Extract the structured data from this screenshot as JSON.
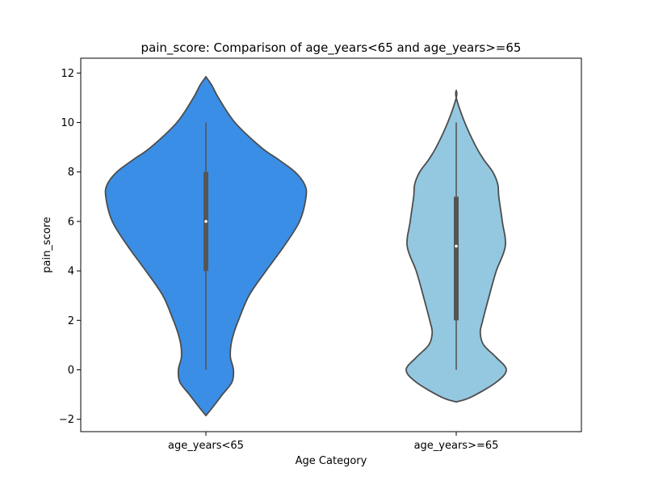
{
  "chart_data": {
    "type": "violin",
    "title": "pain_score: Comparison of age_years<65 and age_years>=65",
    "xlabel": "Age Category",
    "ylabel": "pain_score",
    "ylim": [
      -2.5,
      12.6
    ],
    "yticks": [
      -2,
      0,
      2,
      4,
      6,
      8,
      10,
      12
    ],
    "ytick_labels": [
      "−2",
      "0",
      "2",
      "4",
      "6",
      "8",
      "10",
      "12"
    ],
    "categories": [
      "age_years<65",
      "age_years>=65"
    ],
    "grid": false,
    "colors": {
      "violin_1": "#3a8ee6",
      "violin_2": "#93c8e0",
      "outline": "#4d4d4d",
      "box": "#555555",
      "median": "#ffffff"
    },
    "violins": [
      {
        "category": "age_years<65",
        "min": 0,
        "q1": 4,
        "median": 6,
        "q3": 8,
        "max": 10,
        "kde_range": [
          -1.85,
          11.85
        ],
        "density_profile": [
          [
            -1.85,
            0.0
          ],
          [
            -1.5,
            0.14
          ],
          [
            -1.0,
            0.33
          ],
          [
            -0.5,
            0.52
          ],
          [
            0.0,
            0.55
          ],
          [
            0.5,
            0.49
          ],
          [
            1.0,
            0.5
          ],
          [
            1.5,
            0.56
          ],
          [
            2.0,
            0.65
          ],
          [
            3.0,
            0.86
          ],
          [
            4.0,
            1.2
          ],
          [
            5.0,
            1.56
          ],
          [
            6.0,
            1.87
          ],
          [
            7.0,
            2.0
          ],
          [
            7.5,
            1.97
          ],
          [
            8.0,
            1.78
          ],
          [
            8.5,
            1.45
          ],
          [
            9.0,
            1.1
          ],
          [
            10.0,
            0.58
          ],
          [
            11.0,
            0.25
          ],
          [
            11.5,
            0.12
          ],
          [
            11.85,
            0.0
          ]
        ]
      },
      {
        "category": "age_years>=65",
        "min": 0,
        "q1": 2,
        "median": 5,
        "q3": 7,
        "max": 10,
        "kde_range": [
          -1.3,
          11.3
        ],
        "density_profile": [
          [
            -1.3,
            0.0
          ],
          [
            -1.1,
            0.3
          ],
          [
            -0.5,
            0.8
          ],
          [
            0.0,
            1.0
          ],
          [
            0.5,
            0.8
          ],
          [
            1.0,
            0.55
          ],
          [
            1.5,
            0.48
          ],
          [
            2.0,
            0.53
          ],
          [
            3.0,
            0.66
          ],
          [
            4.0,
            0.8
          ],
          [
            5.0,
            0.98
          ],
          [
            6.0,
            0.92
          ],
          [
            7.0,
            0.85
          ],
          [
            7.5,
            0.83
          ],
          [
            8.0,
            0.73
          ],
          [
            8.5,
            0.55
          ],
          [
            9.0,
            0.4
          ],
          [
            10.0,
            0.17
          ],
          [
            11.0,
            0.0
          ],
          [
            11.3,
            0.0
          ]
        ]
      }
    ]
  }
}
